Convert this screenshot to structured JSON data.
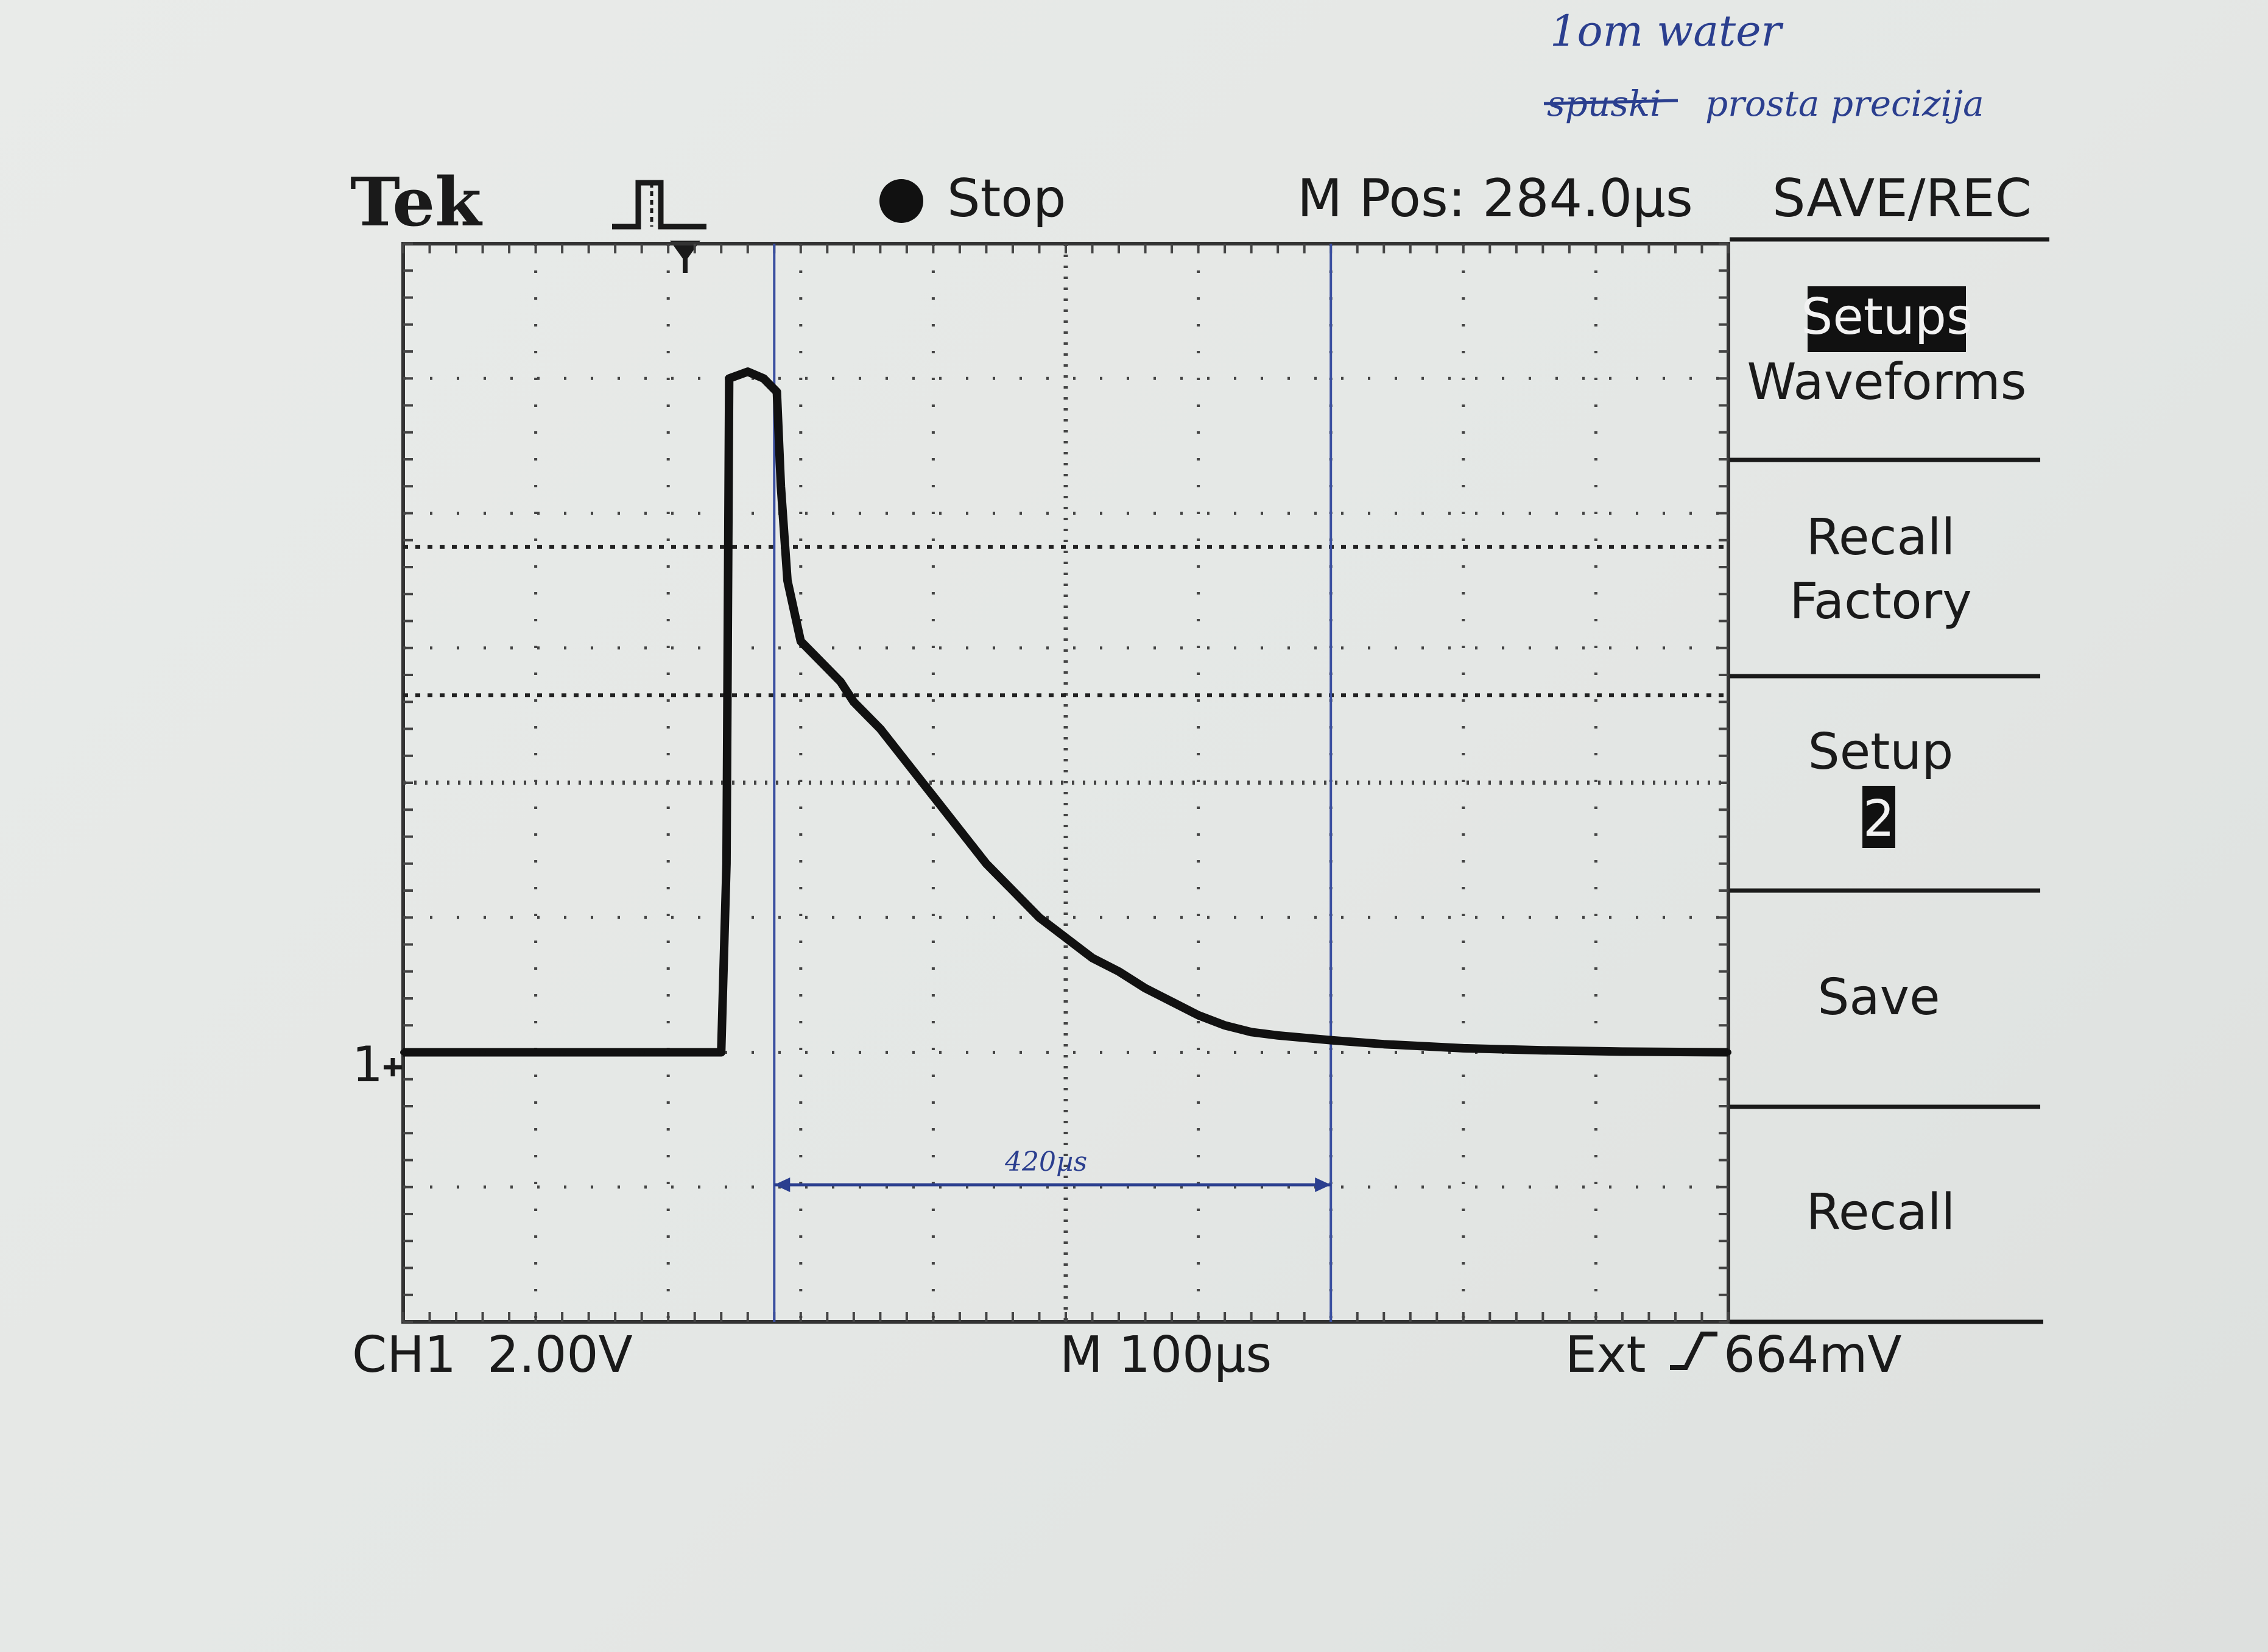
{
  "handwriting": {
    "line1": "1om water",
    "line2_struck": "spuski",
    "line2": "prosta precizija"
  },
  "header": {
    "brand": "Tek",
    "trigger_icon": "trigger-pulse-icon",
    "status": "Stop",
    "m_pos": "M Pos: 284.0µs",
    "menu_title": "SAVE/REC"
  },
  "menu": {
    "setups_selected": "Setups",
    "waveforms": "Waveforms",
    "recall_factory_1": "Recall",
    "recall_factory_2": "Factory",
    "setup_label": "Setup",
    "setup_num": "2",
    "save": "Save",
    "recall": "Recall"
  },
  "footer": {
    "channel": "CH1",
    "volts_div": "2.00V",
    "timebase": "M 100µs",
    "trigger_source": "Ext",
    "trigger_slope_icon": "rising-edge-icon",
    "trigger_level": "664mV"
  },
  "annotation": {
    "interval": "420µs"
  },
  "colors": {
    "trace": "#111111",
    "pen": "#2b3f8f",
    "paper": "#e6e8e6"
  },
  "chart_data": {
    "type": "line",
    "title": "",
    "xlabel": "",
    "ylabel": "",
    "units": {
      "x": "µs from screen left",
      "y": "V"
    },
    "xlim": [
      0,
      1000
    ],
    "ylim": [
      -4,
      12
    ],
    "ground_marker": "1",
    "series": [
      {
        "name": "",
        "x": [
          0,
          60,
          120,
          180,
          240,
          244,
          246,
          260,
          272,
          282,
          285,
          290,
          300,
          310,
          320,
          330,
          340,
          350,
          360,
          380,
          400,
          420,
          440,
          460,
          480,
          500,
          520,
          540,
          560,
          580,
          600,
          620,
          640,
          660,
          700,
          740,
          800,
          860,
          920,
          1000
        ],
        "y": [
          0,
          0,
          0,
          0,
          0,
          2.8,
          10.0,
          10.1,
          10.0,
          9.8,
          8.4,
          7.0,
          6.1,
          5.9,
          5.7,
          5.5,
          5.2,
          5.0,
          4.8,
          4.3,
          3.8,
          3.3,
          2.8,
          2.4,
          2.0,
          1.7,
          1.4,
          1.2,
          0.95,
          0.75,
          0.55,
          0.4,
          0.3,
          0.25,
          0.18,
          0.12,
          0.06,
          0.03,
          0.01,
          0.0
        ]
      }
    ],
    "cursors_us": [
      280,
      700
    ],
    "reference_levels_v": [
      7.5,
      5.3
    ],
    "measured_interval_us": 420,
    "grid": true
  }
}
